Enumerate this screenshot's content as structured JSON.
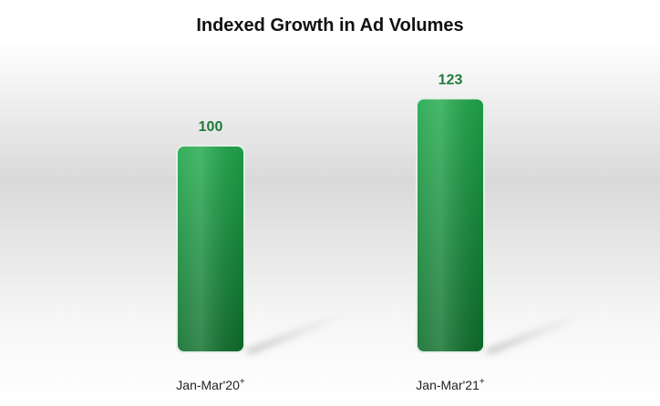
{
  "chart_data": {
    "type": "bar",
    "title": "Indexed Growth in Ad Volumes",
    "categories": [
      "Jan-Mar'20",
      "Jan-Mar'21"
    ],
    "category_marks": [
      "+",
      "+"
    ],
    "values": [
      100,
      123
    ],
    "data_labels": [
      "100",
      "123"
    ],
    "xlabel": "",
    "ylabel": "",
    "ylim": [
      0,
      150
    ],
    "grid": false,
    "legend": "none",
    "bar_color": "#1fa84a",
    "bar_color_dark": "#0e6e2c",
    "label_color": "#1e7a3a"
  }
}
